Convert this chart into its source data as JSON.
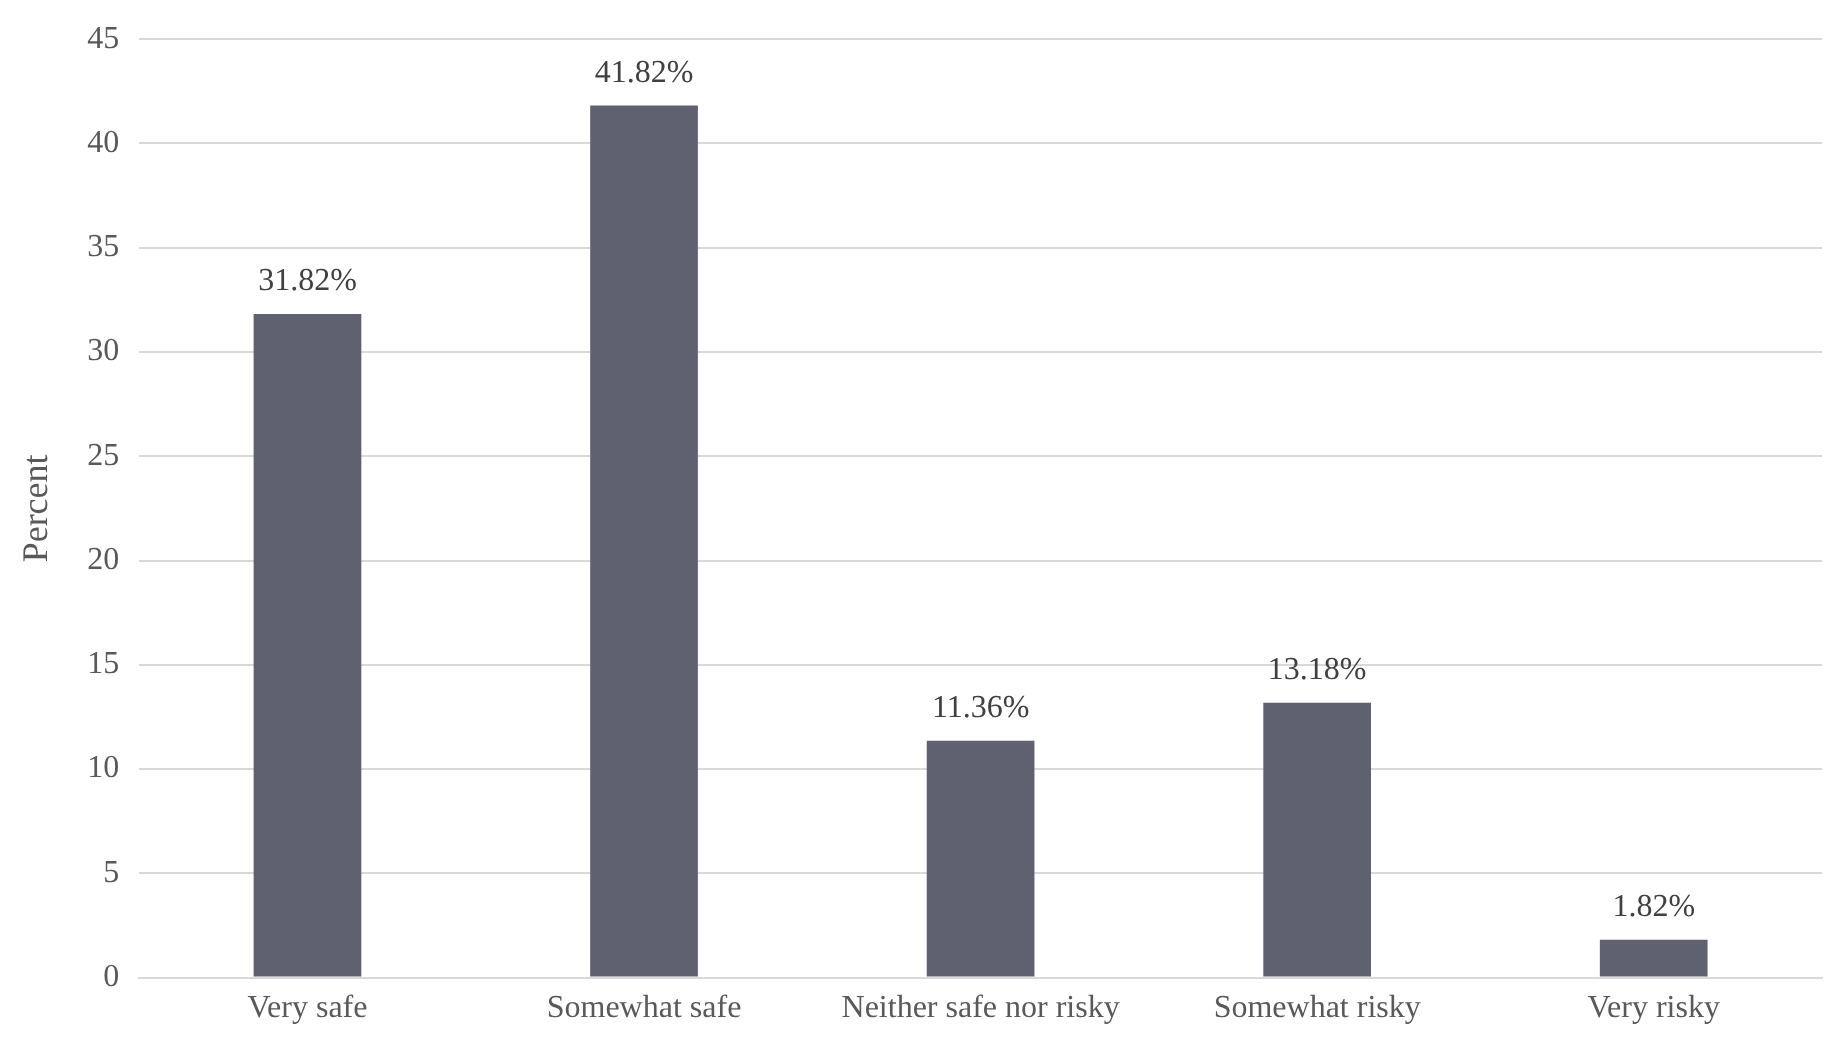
{
  "chart_data": {
    "type": "bar",
    "ylabel": "Percent",
    "categories": [
      "Very safe",
      "Somewhat safe",
      "Neither safe nor risky",
      "Somewhat risky",
      "Very risky"
    ],
    "values": [
      31.82,
      41.82,
      11.36,
      13.18,
      1.82
    ],
    "value_labels": [
      "31.82%",
      "41.82%",
      "11.36%",
      "13.18%",
      "1.82%"
    ],
    "color": "#5f6170",
    "ylim": [
      0,
      45
    ],
    "yticks": [
      0,
      5,
      10,
      15,
      20,
      25,
      30,
      35,
      40,
      45
    ],
    "grid": "y",
    "legend": false
  }
}
